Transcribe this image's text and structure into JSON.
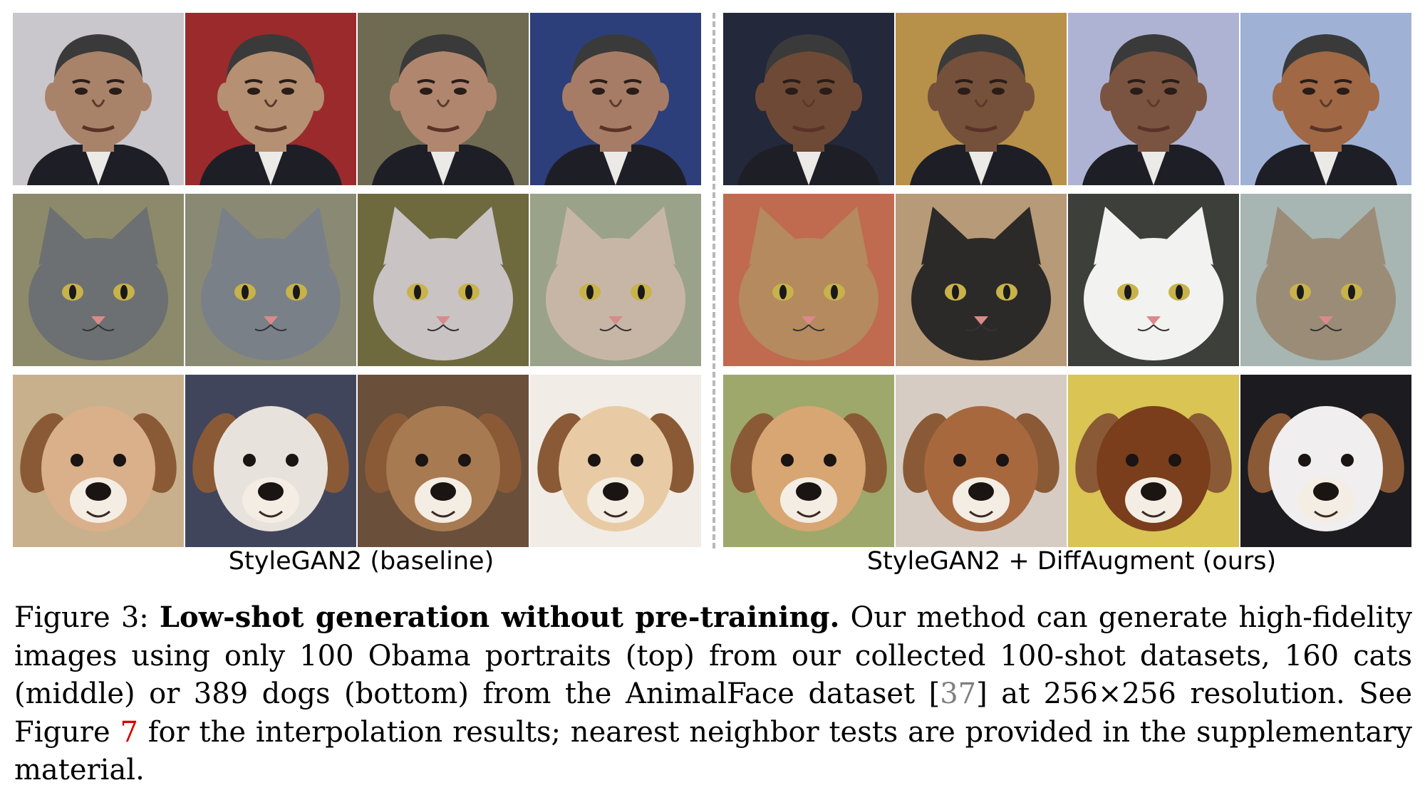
{
  "panels": [
    {
      "id": "baseline",
      "label": "StyleGAN2 (baseline)",
      "rows": [
        {
          "subject": "obama",
          "bg": [
            "#c9c6cc",
            "#9a2a2c",
            "#6f6b52",
            "#2d3f7a"
          ],
          "skin": [
            "#a9826a",
            "#b69072",
            "#b0876e",
            "#a77c66"
          ]
        },
        {
          "subject": "cat",
          "bg": [
            "#8c8a6a",
            "#8a8a74",
            "#6f6a3e",
            "#9aa38a"
          ],
          "fur": [
            "#6d7072",
            "#7a8088",
            "#c9c3c4",
            "#c7b6a6"
          ]
        },
        {
          "subject": "dog",
          "bg": [
            "#c9b08c",
            "#41455c",
            "#6a4f3a",
            "#f1ece6"
          ],
          "fur": [
            "#d9b08a",
            "#e8e2dc",
            "#a87a52",
            "#e8cba4"
          ]
        }
      ]
    },
    {
      "id": "ours",
      "label": "StyleGAN2 + DiffAugment (ours)",
      "rows": [
        {
          "subject": "obama",
          "bg": [
            "#23283a",
            "#b7904a",
            "#aeb3d4",
            "#9fb2d6"
          ],
          "skin": [
            "#6e4a36",
            "#75503a",
            "#7a5440",
            "#a06844"
          ]
        },
        {
          "subject": "cat",
          "bg": [
            "#c06a50",
            "#b79a78",
            "#3d3f3a",
            "#a7b6b2"
          ],
          "fur": [
            "#b48a5e",
            "#2c2a28",
            "#f2f2f0",
            "#9b8c78"
          ]
        },
        {
          "subject": "dog",
          "bg": [
            "#9ea86a",
            "#d7ccc4",
            "#d9c454",
            "#1c1b20"
          ],
          "fur": [
            "#d7a672",
            "#a8683e",
            "#7a3e1c",
            "#f0eeee"
          ]
        }
      ]
    }
  ],
  "caption": {
    "prefix": "Figure 3: ",
    "bold": "Low-shot generation without pre-training.",
    "text1": " Our method can generate high-fidelity images using only 100 Obama portraits (top) from our collected 100-shot datasets, 160 cats (middle) or 389 dogs (bottom) from the AnimalFace dataset [",
    "cite": "37",
    "text2": "] at 256×256 resolution. See Figure ",
    "figref": "7",
    "text3": " for the interpolation results; nearest neighbor tests are provided in the supplementary material."
  }
}
